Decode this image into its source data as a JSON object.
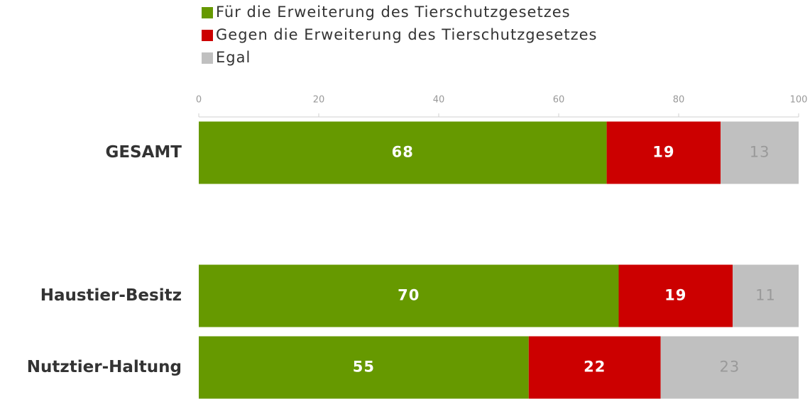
{
  "chart_data": {
    "type": "stacked_barh",
    "categories": [
      "GESAMT",
      null,
      "Haustier-Besitz",
      "Nutztier-Haltung"
    ],
    "series": [
      {
        "name": "Für die Erweiterung des Tierschutzgesetzes",
        "color": "#669900",
        "values": [
          68,
          null,
          70,
          55
        ]
      },
      {
        "name": "Gegen die Erweiterung des Tierschutzgesetzes",
        "color": "#cc0000",
        "values": [
          19,
          null,
          19,
          22
        ]
      },
      {
        "name": "Egal",
        "color": "#c0c0c0",
        "values": [
          13,
          null,
          11,
          23
        ]
      }
    ],
    "xlim": [
      0,
      100
    ],
    "xticks": [
      0,
      20,
      40,
      60,
      80,
      100
    ],
    "legend": "top-left"
  }
}
